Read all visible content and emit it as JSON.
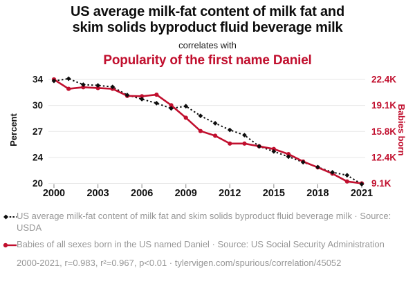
{
  "header": {
    "title_line1": "US average milk-fat content of milk fat and",
    "title_line2": "skim solids byproduct fluid beverage milk",
    "connector": "correlates with",
    "subtitle": "Popularity of the first name Daniel"
  },
  "chart_data": {
    "type": "line",
    "x": [
      2000,
      2001,
      2002,
      2003,
      2004,
      2005,
      2006,
      2007,
      2008,
      2009,
      2010,
      2011,
      2012,
      2013,
      2014,
      2015,
      2016,
      2017,
      2018,
      2019,
      2020,
      2021
    ],
    "x_ticks": [
      2000,
      2003,
      2006,
      2009,
      2012,
      2015,
      2018,
      2021
    ],
    "grid": "horizontal",
    "legend_position": "bottom",
    "left_axis": {
      "label": "Percent",
      "tick_labels": [
        "34",
        "30",
        "27",
        "24",
        "20"
      ],
      "range": [
        20,
        34
      ]
    },
    "right_axis": {
      "label": "Babies born",
      "tick_labels": [
        "22.4K",
        "19.1K",
        "15.8K",
        "12.4K",
        "9.1K"
      ],
      "range": [
        9100,
        22400
      ]
    },
    "series": [
      {
        "name": "US average milk-fat content of milk fat and skim solids byproduct fluid beverage milk",
        "axis": "left",
        "style": "dotted-diamond",
        "color": "#0d0d0d",
        "values": [
          33.8,
          34.1,
          33.3,
          33.2,
          33.0,
          31.9,
          31.35,
          30.8,
          30.1,
          30.4,
          29.1,
          28.1,
          27.2,
          26.5,
          25.0,
          24.3,
          23.6,
          22.85,
          22.2,
          21.5,
          21.1,
          19.9
        ]
      },
      {
        "name": "Babies of all sexes born in the US named Daniel",
        "axis": "right",
        "style": "solid-circle",
        "color": "#c10f2e",
        "values": [
          22400,
          21200,
          21400,
          21300,
          21200,
          20300,
          20250,
          20450,
          19100,
          17500,
          15800,
          15200,
          14200,
          14200,
          13850,
          13500,
          12850,
          11900,
          11150,
          10350,
          9350,
          9100
        ]
      }
    ]
  },
  "legend": {
    "items": [
      {
        "marker": "black-dotted-diamond",
        "label": "US average milk-fat content of milk fat and skim solids byproduct fluid beverage milk · Source: USDA"
      },
      {
        "marker": "red-solid-circle",
        "label": "Babies of all sexes born in the US named Daniel · Source: US Social Security Administration"
      }
    ],
    "footer": "2000-2021, r=0.983, r²=0.967, p<0.01 · tylervigen.com/spurious/correlation/45052"
  },
  "colors": {
    "accent_red": "#c10f2e",
    "series_black": "#0d0d0d",
    "grid": "#e7e7e7",
    "tick_mark": "#999999",
    "year_label": "#111111",
    "legend_text": "#979797"
  }
}
